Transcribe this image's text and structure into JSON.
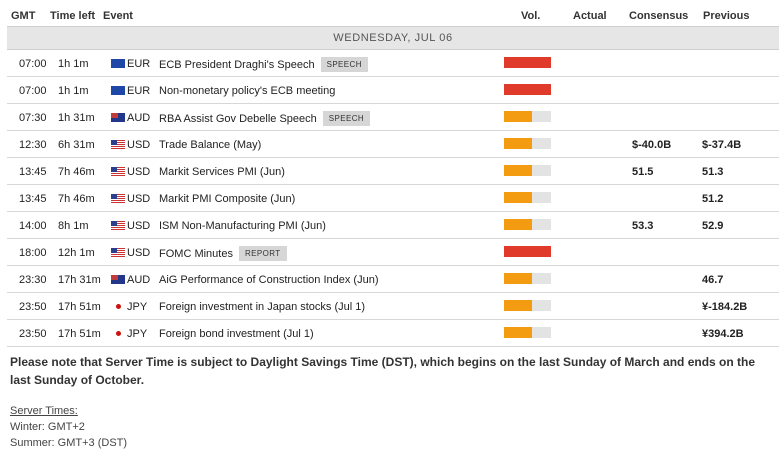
{
  "header": {
    "gmt": "GMT",
    "time_left": "Time left",
    "event": "Event",
    "vol": "Vol.",
    "actual": "Actual",
    "consensus": "Consensus",
    "previous": "Previous"
  },
  "day_label": "WEDNESDAY, JUL 06",
  "colors": {
    "high": "#e03a2a",
    "medium": "#f39c12",
    "empty": "#e3e3e3"
  },
  "rows": [
    {
      "time": "07:00",
      "left": "1h 1m",
      "flag": "eu-flag-icon",
      "currency": "EUR",
      "event": "ECB President Draghi's Speech",
      "tag": "SPEECH",
      "vol": 1.0,
      "vol_level": "high",
      "actual": "",
      "consensus": "",
      "previous": ""
    },
    {
      "time": "07:00",
      "left": "1h 1m",
      "flag": "eu-flag-icon",
      "currency": "EUR",
      "event": "Non-monetary policy's ECB meeting",
      "tag": "",
      "vol": 1.0,
      "vol_level": "high",
      "actual": "",
      "consensus": "",
      "previous": ""
    },
    {
      "time": "07:30",
      "left": "1h 31m",
      "flag": "au-flag-icon",
      "currency": "AUD",
      "event": "RBA Assist Gov Debelle Speech",
      "tag": "SPEECH",
      "vol": 0.6,
      "vol_level": "medium",
      "actual": "",
      "consensus": "",
      "previous": ""
    },
    {
      "time": "12:30",
      "left": "6h 31m",
      "flag": "us-flag-icon",
      "currency": "USD",
      "event": "Trade Balance (May)",
      "tag": "",
      "vol": 0.6,
      "vol_level": "medium",
      "actual": "",
      "consensus": "$-40.0B",
      "previous": "$-37.4B"
    },
    {
      "time": "13:45",
      "left": "7h 46m",
      "flag": "us-flag-icon",
      "currency": "USD",
      "event": "Markit Services PMI (Jun)",
      "tag": "",
      "vol": 0.6,
      "vol_level": "medium",
      "actual": "",
      "consensus": "51.5",
      "previous": "51.3"
    },
    {
      "time": "13:45",
      "left": "7h 46m",
      "flag": "us-flag-icon",
      "currency": "USD",
      "event": "Markit PMI Composite (Jun)",
      "tag": "",
      "vol": 0.6,
      "vol_level": "medium",
      "actual": "",
      "consensus": "",
      "previous": "51.2"
    },
    {
      "time": "14:00",
      "left": "8h 1m",
      "flag": "us-flag-icon",
      "currency": "USD",
      "event": "ISM Non-Manufacturing PMI (Jun)",
      "tag": "",
      "vol": 0.6,
      "vol_level": "medium",
      "actual": "",
      "consensus": "53.3",
      "previous": "52.9"
    },
    {
      "time": "18:00",
      "left": "12h 1m",
      "flag": "us-flag-icon",
      "currency": "USD",
      "event": "FOMC Minutes",
      "tag": "REPORT",
      "vol": 1.0,
      "vol_level": "high",
      "actual": "",
      "consensus": "",
      "previous": ""
    },
    {
      "time": "23:30",
      "left": "17h 31m",
      "flag": "au-flag-icon",
      "currency": "AUD",
      "event": "AiG Performance of Construction Index (Jun)",
      "tag": "",
      "vol": 0.6,
      "vol_level": "medium",
      "actual": "",
      "consensus": "",
      "previous": "46.7"
    },
    {
      "time": "23:50",
      "left": "17h 51m",
      "flag": "jp-flag-icon",
      "currency": "JPY",
      "event": "Foreign investment in Japan stocks (Jul 1)",
      "tag": "",
      "vol": 0.6,
      "vol_level": "medium",
      "actual": "",
      "consensus": "",
      "previous": "¥-184.2B"
    },
    {
      "time": "23:50",
      "left": "17h 51m",
      "flag": "jp-flag-icon",
      "currency": "JPY",
      "event": "Foreign bond investment (Jul 1)",
      "tag": "",
      "vol": 0.6,
      "vol_level": "medium",
      "actual": "",
      "consensus": "",
      "previous": "¥394.2B"
    }
  ],
  "note": "Please note that Server Time is subject to Daylight Savings Time (DST), which begins on the last Sunday of March and ends on the last Sunday of October.",
  "server_times": {
    "title": "Server Times:",
    "winter": "Winter: GMT+2",
    "summer": "Summer: GMT+3 (DST)"
  }
}
